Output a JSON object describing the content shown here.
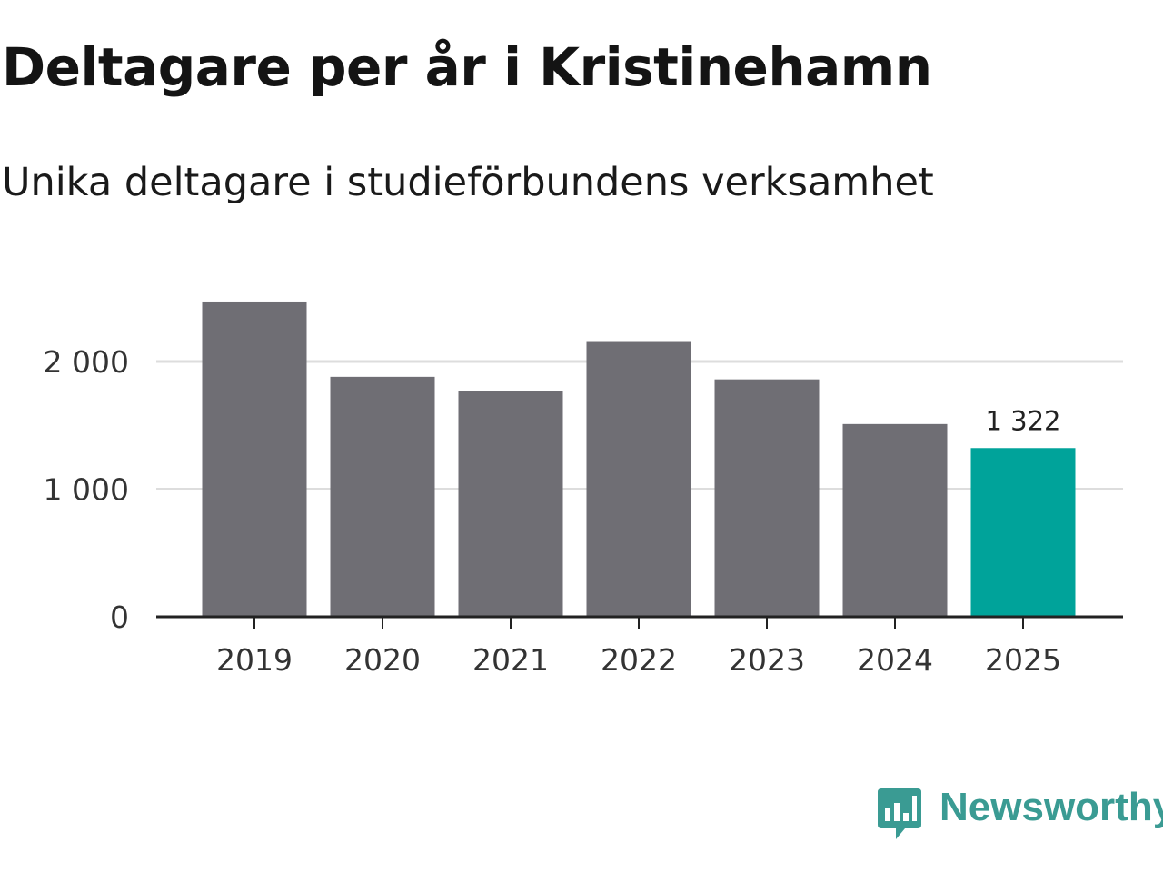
{
  "header": {
    "title": "Deltagare per år i Kristinehamn",
    "subtitle": "Unika deltagare i studieförbundens verksamhet"
  },
  "brand": {
    "name": "Newsworthy",
    "color": "#3a9b93"
  },
  "colors": {
    "bar": "#6f6e74",
    "highlight": "#00a39a",
    "grid": "#dddddd",
    "axis": "#222222"
  },
  "chart_data": {
    "type": "bar",
    "title": "Deltagare per år i Kristinehamn",
    "subtitle": "Unika deltagare i studieförbundens verksamhet",
    "xlabel": "",
    "ylabel": "",
    "categories": [
      "2019",
      "2020",
      "2021",
      "2022",
      "2023",
      "2024",
      "2025"
    ],
    "values": [
      2470,
      1880,
      1770,
      2160,
      1860,
      1510,
      1322
    ],
    "highlight_index": 6,
    "data_labels": [
      {
        "index": 6,
        "text": "1 322"
      }
    ],
    "ylim": [
      0,
      2600
    ],
    "yticks": [
      0,
      1000,
      2000
    ],
    "ytick_labels": [
      "0",
      "1 000",
      "2 000"
    ],
    "grid": true,
    "legend": "none"
  }
}
